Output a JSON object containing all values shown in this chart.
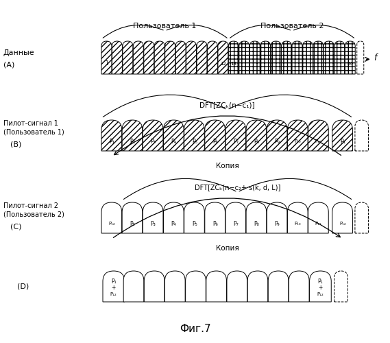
{
  "title": "Фиг.7",
  "user1_label": "Пользователь 1",
  "user2_label": "Пользователь 2",
  "data_label": "Данные",
  "row_A_label": "(A)",
  "pilot1_label": "Пилот-сигнал 1\n(Пользователь 1)",
  "row_B_label": "(B)",
  "pilot2_label": "Пилот-сигнал 2\n(Пользователь 2)",
  "row_C_label": "(C)",
  "row_D_label": "(D)",
  "dft1_label": "DFT[ZCₖ(n−c₁)]",
  "dft2_label": "DFT[ZCₖ(n−c₂+ s(k, d, L)]",
  "copy_label": "Копия",
  "fig_label": "Фиг.7",
  "bg_color": "#ffffff"
}
